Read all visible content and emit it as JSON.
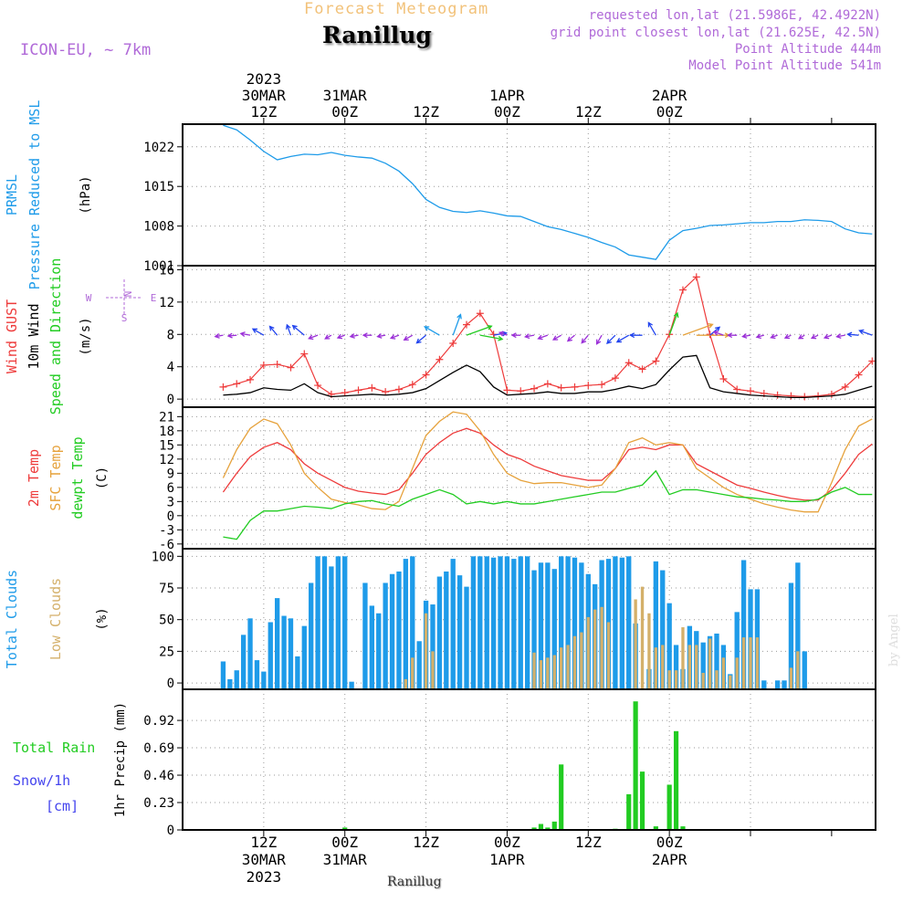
{
  "header": {
    "product": "Forecast Meteogram",
    "location": "Ranillug",
    "model": "ICON-EU, ~ 7km",
    "requested": "requested lon,lat (21.5986E, 42.4922N)",
    "grid_point": "grid point closest lon,lat (21.625E, 42.5N)",
    "point_altitude": "Point Altitude 444m",
    "model_altitude": "Model Point Altitude 541m",
    "footer_location": "Ranillug",
    "credit": "by Angel"
  },
  "colors": {
    "pressure": "#1e9be9",
    "gust": "#ee3b3b",
    "wind": "#000000",
    "temp": "#ee3b3b",
    "sfc_temp": "#e6a23c",
    "dewpoint": "#22cc22",
    "total_clouds": "#1e9be9",
    "low_clouds": "#d4b06a",
    "rain": "#22cc22",
    "snow": "#4444ee",
    "model_label": "#b06ad8",
    "product_title": "#f2c27a"
  },
  "chart_data": [
    {
      "type": "line",
      "id": "pressure",
      "ylabel_lines": [
        "PRMSL",
        "Pressure Reduced to MSL"
      ],
      "unit": "(hPa)",
      "yticks": [
        1001,
        1008,
        1015,
        1022
      ],
      "ylim": [
        1001,
        1026
      ],
      "x_hours": [
        0,
        2,
        4,
        6,
        8,
        10,
        12,
        14,
        16,
        18,
        20,
        22,
        24,
        26,
        28,
        30,
        32,
        34,
        36,
        38,
        40,
        42,
        44,
        46,
        48,
        50,
        52,
        54,
        56,
        58,
        60,
        62,
        64,
        66,
        68,
        70,
        72,
        74,
        76,
        78,
        80,
        82,
        84,
        86,
        88,
        90,
        92,
        94,
        96
      ],
      "values": [
        1025.8,
        1025,
        1023.2,
        1021.2,
        1019.7,
        1020.3,
        1020.7,
        1020.6,
        1021,
        1020.5,
        1020.2,
        1020,
        1019.1,
        1017.7,
        1015.5,
        1012.7,
        1011.3,
        1010.6,
        1010.4,
        1010.7,
        1010.3,
        1009.8,
        1009.7,
        1008.8,
        1007.9,
        1007.4,
        1006.7,
        1006,
        1005.1,
        1004.3,
        1002.9,
        1002.5,
        1002.1,
        1005.5,
        1007.2,
        1007.6,
        1008.1,
        1008.2,
        1008.4,
        1008.6,
        1008.6,
        1008.8,
        1008.8,
        1009.1,
        1009,
        1008.8,
        1007.5,
        1006.8,
        1006.6
      ]
    },
    {
      "type": "line",
      "id": "wind",
      "ylabel_lines": [
        "Wind GUST",
        "10m Wind",
        "Speed and Direction"
      ],
      "unit": "(m/s)",
      "yticks": [
        0,
        4,
        8,
        12,
        16
      ],
      "ylim": [
        -1,
        16.5
      ],
      "compass": {
        "n": "N",
        "s": "S",
        "w": "W",
        "e": "E"
      },
      "arrow_level": 7.9,
      "x_hours": [
        0,
        2,
        4,
        6,
        8,
        10,
        12,
        14,
        16,
        18,
        20,
        22,
        24,
        26,
        28,
        30,
        32,
        34,
        36,
        38,
        40,
        42,
        44,
        46,
        48,
        50,
        52,
        54,
        56,
        58,
        60,
        62,
        64,
        66,
        68,
        70,
        72,
        74,
        76,
        78,
        80,
        82,
        84,
        86,
        88,
        90,
        92,
        94,
        96
      ],
      "series": [
        {
          "name": "Wind GUST",
          "values": [
            1.5,
            1.9,
            2.4,
            4.2,
            4.3,
            3.9,
            5.6,
            1.7,
            0.6,
            0.8,
            1.1,
            1.4,
            0.9,
            1.2,
            1.8,
            3,
            4.9,
            6.9,
            9.2,
            10.6,
            8,
            1.1,
            1,
            1.3,
            1.9,
            1.4,
            1.5,
            1.7,
            1.8,
            2.6,
            4.5,
            3.7,
            4.7,
            8,
            13.5,
            15.1,
            8,
            2.5,
            1.2,
            1,
            0.7,
            0.5,
            0.4,
            0.3,
            0.4,
            0.6,
            1.5,
            3,
            4.7
          ]
        },
        {
          "name": "10m Wind",
          "values": [
            0.5,
            0.6,
            0.8,
            1.4,
            1.2,
            1.1,
            1.9,
            0.8,
            0.3,
            0.4,
            0.5,
            0.6,
            0.5,
            0.6,
            0.8,
            1.3,
            2.3,
            3.3,
            4.2,
            3.4,
            1.5,
            0.5,
            0.6,
            0.7,
            0.9,
            0.7,
            0.7,
            0.9,
            0.9,
            1.2,
            1.6,
            1.3,
            1.8,
            3.6,
            5.2,
            5.4,
            1.4,
            0.9,
            0.7,
            0.5,
            0.4,
            0.3,
            0.2,
            0.2,
            0.3,
            0.4,
            0.6,
            1.1,
            1.6
          ]
        }
      ],
      "arrow_dirs_deg": [
        80,
        85,
        100,
        120,
        140,
        160,
        130,
        70,
        60,
        70,
        80,
        90,
        80,
        70,
        60,
        50,
        120,
        200,
        250,
        280,
        260,
        110,
        90,
        80,
        70,
        60,
        50,
        40,
        30,
        45,
        60,
        90,
        150,
        200,
        250,
        270,
        230,
        110,
        90,
        80,
        75,
        70,
        65,
        60,
        65,
        70,
        80,
        95,
        110
      ]
    },
    {
      "type": "line",
      "id": "temperature",
      "ylabel_lines": [
        "2m Temp",
        "SFC Temp",
        "dewpt Temp"
      ],
      "unit": "(C)",
      "yticks": [
        -6,
        -3,
        0,
        3,
        6,
        9,
        12,
        15,
        18,
        21
      ],
      "ylim": [
        -7,
        23
      ],
      "x_hours": [
        0,
        2,
        4,
        6,
        8,
        10,
        12,
        14,
        16,
        18,
        20,
        22,
        24,
        26,
        28,
        30,
        32,
        34,
        36,
        38,
        40,
        42,
        44,
        46,
        48,
        50,
        52,
        54,
        56,
        58,
        60,
        62,
        64,
        66,
        68,
        70,
        72,
        74,
        76,
        78,
        80,
        82,
        84,
        86,
        88,
        90,
        92,
        94,
        96
      ],
      "series": [
        {
          "name": "2m Temp",
          "values": [
            5,
            9,
            12.5,
            14.5,
            15.5,
            14,
            11,
            9,
            7.5,
            6,
            5.2,
            4.8,
            4.5,
            5.5,
            9,
            13,
            15.5,
            17.5,
            18.5,
            17.5,
            15,
            13,
            12,
            10.5,
            9.5,
            8.5,
            8,
            7.5,
            7.5,
            10,
            14,
            14.5,
            14,
            15,
            15,
            11,
            9.5,
            8,
            6.5,
            5.8,
            5,
            4.3,
            3.7,
            3.3,
            3.3,
            5.5,
            9,
            13,
            15.2
          ]
        },
        {
          "name": "SFC Temp",
          "values": [
            8,
            14,
            18.5,
            20.5,
            19.5,
            15,
            9,
            6,
            3.5,
            2.8,
            2.3,
            1.5,
            1.3,
            3,
            10,
            17,
            20,
            22,
            21.5,
            18,
            13,
            9,
            7.5,
            6.8,
            7,
            7,
            6.5,
            6,
            6.5,
            10,
            15.5,
            16.5,
            15,
            15.5,
            15,
            10,
            8,
            6,
            4.5,
            3.5,
            2.5,
            1.8,
            1.2,
            0.8,
            0.8,
            7,
            14,
            19,
            20.5
          ]
        },
        {
          "name": "dewpt Temp",
          "values": [
            -4.5,
            -5,
            -1,
            1,
            1,
            1.5,
            2,
            1.8,
            1.5,
            2.5,
            3,
            3.2,
            2.5,
            2,
            3.5,
            4.5,
            5.5,
            4.5,
            2.5,
            3,
            2.5,
            3,
            2.5,
            2.5,
            3,
            3.5,
            4,
            4.5,
            5,
            5,
            5.8,
            6.5,
            9.5,
            4.5,
            5.5,
            5.5,
            5,
            4.5,
            4,
            3.8,
            3.5,
            3.3,
            3,
            3,
            3.5,
            5,
            6,
            4.5,
            4.5
          ]
        }
      ]
    },
    {
      "type": "bar",
      "id": "clouds",
      "ylabel_lines": [
        "Total Clouds",
        "Low Clouds"
      ],
      "unit": "(%)",
      "yticks": [
        0,
        25,
        50,
        75,
        100
      ],
      "ylim": [
        -5,
        106
      ],
      "x_hours": [
        0,
        1,
        2,
        3,
        4,
        5,
        6,
        7,
        8,
        9,
        10,
        11,
        12,
        13,
        14,
        15,
        16,
        17,
        18,
        19,
        20,
        21,
        22,
        23,
        24,
        25,
        26,
        27,
        28,
        29,
        30,
        31,
        32,
        33,
        34,
        35,
        36,
        37,
        38,
        39,
        40,
        41,
        42,
        43,
        44,
        45,
        46,
        47,
        48,
        49,
        50,
        51,
        52,
        53,
        54,
        55,
        56,
        57,
        58,
        59,
        60,
        61,
        62,
        63,
        64,
        65,
        66,
        67,
        68,
        69,
        70,
        71,
        72,
        73,
        74,
        75,
        76,
        77,
        78,
        79,
        80,
        81,
        82,
        83,
        84,
        85,
        86,
        87,
        88,
        89,
        90,
        91,
        92,
        93,
        94,
        95,
        96
      ],
      "series": [
        {
          "name": "Total Clouds",
          "values": [
            17,
            3,
            10,
            38,
            51,
            18,
            9,
            48,
            67,
            53,
            51,
            21,
            45,
            79,
            100,
            100,
            92,
            100,
            100,
            1,
            0,
            79,
            61,
            55,
            79,
            86,
            88,
            98,
            100,
            33,
            65,
            62,
            84,
            88,
            98,
            85,
            76,
            100,
            100,
            100,
            99,
            100,
            100,
            98,
            100,
            100,
            89,
            95,
            95,
            90,
            100,
            100,
            99,
            95,
            86,
            78,
            97,
            98,
            100,
            99,
            100,
            47,
            0,
            11,
            96,
            89,
            63,
            30,
            11,
            45,
            41,
            32,
            37,
            39,
            30,
            7,
            56,
            97,
            74,
            74,
            2,
            0,
            2,
            2,
            79,
            95,
            25
          ]
        },
        {
          "name": "Low Clouds",
          "values": [
            0,
            0,
            0,
            0,
            0,
            0,
            0,
            0,
            0,
            0,
            0,
            0,
            0,
            0,
            0,
            0,
            0,
            0,
            0,
            0,
            0,
            0,
            0,
            0,
            0,
            0,
            0,
            3,
            20,
            0,
            55,
            25,
            0,
            0,
            0,
            0,
            0,
            0,
            0,
            0,
            0,
            0,
            0,
            0,
            0,
            0,
            24,
            18,
            20,
            22,
            28,
            30,
            37,
            40,
            52,
            58,
            60,
            48,
            0,
            0,
            0,
            66,
            76,
            55,
            28,
            30,
            10,
            10,
            44,
            30,
            30,
            8,
            35,
            10,
            20,
            6,
            20,
            36,
            36,
            36,
            0,
            0,
            0,
            0,
            12,
            25,
            0
          ]
        }
      ]
    },
    {
      "type": "bar",
      "id": "precip",
      "ylabel_lines": [
        "Total  Rain",
        "Snow/1h",
        "[cm]"
      ],
      "unit": "1hr Precip (mm)",
      "yticks": [
        0,
        0.23,
        0.46,
        0.69,
        0.92
      ],
      "ylim": [
        0,
        1.12
      ],
      "x_hours": [
        0,
        1,
        2,
        3,
        4,
        5,
        6,
        7,
        8,
        9,
        10,
        11,
        12,
        13,
        14,
        15,
        16,
        17,
        18,
        19,
        20,
        21,
        22,
        23,
        24,
        25,
        26,
        27,
        28,
        29,
        30,
        31,
        32,
        33,
        34,
        35,
        36,
        37,
        38,
        39,
        40,
        41,
        42,
        43,
        44,
        45,
        46,
        47,
        48,
        49,
        50,
        51,
        52,
        53,
        54,
        55,
        56,
        57,
        58,
        59,
        60,
        61,
        62,
        63,
        64,
        65,
        66,
        67,
        68,
        69,
        70,
        71,
        72,
        73,
        74,
        75,
        76,
        77,
        78,
        79,
        80,
        81,
        82,
        83,
        84,
        85,
        86,
        87,
        88,
        89,
        90,
        91,
        92,
        93,
        94,
        95,
        96
      ],
      "series": [
        {
          "name": "Total Rain",
          "values": [
            0,
            0,
            0,
            0,
            0,
            0,
            0,
            0,
            0,
            0,
            0,
            0,
            0,
            0,
            0,
            0,
            0,
            0,
            0.02,
            0,
            0,
            0,
            0,
            0,
            0,
            0,
            0,
            0,
            0,
            0,
            0,
            0,
            0,
            0,
            0,
            0,
            0,
            0,
            0,
            0,
            0,
            0,
            0,
            0,
            0,
            0,
            0.02,
            0.05,
            0.02,
            0.07,
            0.55,
            0,
            0,
            0,
            0,
            0,
            0,
            0,
            0.01,
            0,
            0.3,
            1.08,
            0.49,
            0,
            0.03,
            0,
            0.38,
            0.83,
            0.03,
            0,
            0,
            0,
            0,
            0,
            0,
            0,
            0,
            0,
            0,
            0,
            0,
            0,
            0,
            0,
            0,
            0,
            0
          ]
        }
      ]
    }
  ],
  "time_axis": {
    "vlines_hours": [
      6,
      18,
      30,
      42,
      54,
      66,
      78
    ],
    "top_labels": [
      {
        "hour": 6,
        "lines": [
          "2023",
          "30MAR",
          "12Z"
        ]
      },
      {
        "hour": 18,
        "lines": [
          "31MAR",
          "00Z"
        ]
      },
      {
        "hour": 30,
        "lines": [
          "12Z"
        ]
      },
      {
        "hour": 42,
        "lines": [
          "1APR",
          "00Z"
        ]
      },
      {
        "hour": 54,
        "lines": [
          "12Z"
        ]
      },
      {
        "hour": 66,
        "lines": [
          "2APR",
          "00Z"
        ]
      }
    ],
    "bottom_labels": [
      {
        "hour": 6,
        "lines": [
          "12Z",
          "30MAR",
          "2023"
        ]
      },
      {
        "hour": 18,
        "lines": [
          "00Z",
          "31MAR"
        ]
      },
      {
        "hour": 30,
        "lines": [
          "12Z"
        ]
      },
      {
        "hour": 42,
        "lines": [
          "00Z",
          "1APR"
        ]
      },
      {
        "hour": 54,
        "lines": [
          "12Z"
        ]
      },
      {
        "hour": 66,
        "lines": [
          "00Z",
          "2APR"
        ]
      }
    ]
  }
}
